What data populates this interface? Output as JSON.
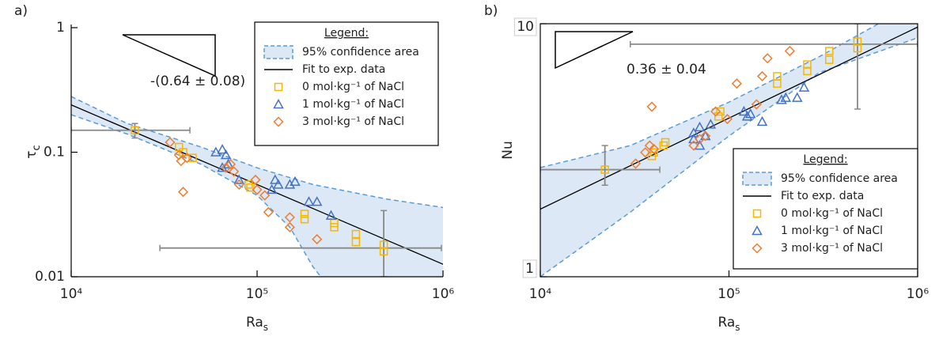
{
  "chart_data": [
    {
      "type": "scatter",
      "panel_label": "a)",
      "xlabel": "Ra",
      "xlabel_sub": "s",
      "ylabel": "τ",
      "ylabel_sub": "c",
      "log_x": true,
      "log_y": true,
      "xlim": [
        10000,
        1000000
      ],
      "ylim": [
        0.01,
        1
      ],
      "xticks": [
        {
          "value": 10000,
          "label": "10⁴"
        },
        {
          "value": 100000,
          "label": "10⁵"
        },
        {
          "value": 1000000,
          "label": "10⁶"
        }
      ],
      "yticks": [
        0.01,
        0.1,
        1
      ],
      "annotation": "-(0.64 ± 0.08)",
      "legend": {
        "title": "Legend:",
        "loc": "upper right"
      },
      "confidence": {
        "name": "95% confidence area",
        "color": "#5b9bd5",
        "upper_x": [
          10000,
          20000,
          50000,
          100000,
          200000,
          500000,
          1000000
        ],
        "upper": [
          0.28,
          0.17,
          0.11,
          0.075,
          0.055,
          0.042,
          0.036
        ],
        "lower_x": [
          10000,
          20000,
          50000,
          100000,
          150000,
          200000,
          220000
        ],
        "lower": [
          0.2,
          0.14,
          0.08,
          0.045,
          0.025,
          0.012,
          0.01
        ]
      },
      "fit": {
        "name": "Fit to exp. data",
        "color": "#000000",
        "x": [
          10000,
          1000000
        ],
        "values": [
          0.24,
          0.0126
        ]
      },
      "series": [
        {
          "name": "0 mol·kg⁻¹ of NaCl",
          "color": "#f5b800",
          "marker": "square",
          "x": [
            22000,
            38000,
            40000,
            45000,
            90000,
            92000,
            180000,
            180000,
            260000,
            260000,
            340000,
            340000,
            480000,
            480000
          ],
          "values": [
            0.15,
            0.11,
            0.1,
            0.09,
            0.055,
            0.052,
            0.032,
            0.029,
            0.027,
            0.025,
            0.022,
            0.019,
            0.018,
            0.016
          ]
        },
        {
          "name": "1 mol·kg⁻¹ of NaCl",
          "color": "#4472c4",
          "marker": "triangle",
          "x": [
            60000,
            65000,
            68000,
            65000,
            70000,
            80000,
            120000,
            125000,
            130000,
            150000,
            160000,
            190000,
            210000,
            250000
          ],
          "values": [
            0.1,
            0.105,
            0.095,
            0.075,
            0.08,
            0.06,
            0.05,
            0.06,
            0.055,
            0.055,
            0.058,
            0.04,
            0.04,
            0.031
          ]
        },
        {
          "name": "3 mol·kg⁻¹ of NaCl",
          "color": "#ed7d31",
          "marker": "diamond",
          "x": [
            34000,
            38000,
            39000,
            40000,
            42000,
            68000,
            72000,
            75000,
            80000,
            98000,
            100000,
            110000,
            115000,
            150000,
            150000,
            210000
          ],
          "values": [
            0.12,
            0.095,
            0.085,
            0.048,
            0.09,
            0.075,
            0.08,
            0.07,
            0.055,
            0.06,
            0.05,
            0.045,
            0.033,
            0.03,
            0.025,
            0.02
          ]
        }
      ],
      "error_bars": [
        {
          "x": 22000,
          "y": 0.15,
          "xerr": [
            10000,
            43500
          ],
          "yerr": [
            0.13,
            0.17
          ]
        },
        {
          "x": 480000,
          "y": 0.017,
          "xerr": [
            30000,
            980000
          ],
          "yerr": [
            0.01,
            0.034
          ]
        }
      ]
    },
    {
      "type": "scatter",
      "panel_label": "b)",
      "xlabel": "Ra",
      "xlabel_sub": "s",
      "ylabel": "Nu",
      "log_x": true,
      "log_y": true,
      "xlim": [
        10000,
        1000000
      ],
      "ylim": [
        1,
        10
      ],
      "xticks": [
        {
          "value": 10000,
          "label": "10⁴"
        },
        {
          "value": 100000,
          "label": "10⁵"
        },
        {
          "value": 1000000,
          "label": "10⁶"
        }
      ],
      "yticks": [
        1,
        10
      ],
      "annotation": "0.36 ± 0.04",
      "legend": {
        "title": "Legend:",
        "loc": "lower right"
      },
      "confidence": {
        "name": "95% confidence area",
        "color": "#5b9bd5",
        "upper_x": [
          10000,
          30000,
          100000,
          300000,
          620000
        ],
        "upper": [
          2.7,
          3.3,
          4.9,
          7.4,
          10
        ],
        "lower_x": [
          10000,
          30000,
          100000,
          300000,
          1000000
        ],
        "lower": [
          1,
          1.8,
          3.6,
          6.4,
          8.8
        ]
      },
      "fit": {
        "name": "Fit to exp. data",
        "color": "#000000",
        "x": [
          10000,
          1000000
        ],
        "values": [
          1.85,
          9.7
        ]
      },
      "series": [
        {
          "name": "0 mol·kg⁻¹ of NaCl",
          "color": "#f5b800",
          "marker": "square",
          "x": [
            22000,
            39000,
            40000,
            45000,
            46000,
            88000,
            90000,
            180000,
            180000,
            260000,
            260000,
            340000,
            340000,
            480000,
            480000
          ],
          "values": [
            2.65,
            3.0,
            3.1,
            3.3,
            3.4,
            4.3,
            4.5,
            5.8,
            6.2,
            6.5,
            6.9,
            7.2,
            7.8,
            8.0,
            8.5
          ]
        },
        {
          "name": "1 mol·kg⁻¹ of NaCl",
          "color": "#4472c4",
          "marker": "triangle",
          "x": [
            65000,
            65000,
            70000,
            70000,
            75000,
            80000,
            120000,
            125000,
            130000,
            150000,
            190000,
            200000,
            230000,
            250000
          ],
          "values": [
            3.5,
            3.7,
            3.3,
            3.9,
            3.6,
            4.0,
            4.5,
            4.3,
            4.4,
            4.1,
            5.0,
            5.1,
            5.1,
            5.6
          ]
        },
        {
          "name": "3 mol·kg⁻¹ of NaCl",
          "color": "#ed7d31",
          "marker": "diamond",
          "x": [
            32000,
            36000,
            38000,
            39000,
            40000,
            65000,
            70000,
            75000,
            85000,
            98000,
            110000,
            140000,
            150000,
            160000,
            210000
          ],
          "values": [
            2.8,
            3.1,
            3.3,
            4.7,
            3.2,
            3.3,
            3.5,
            3.6,
            4.5,
            4.2,
            5.8,
            4.8,
            6.2,
            7.3,
            7.8
          ]
        }
      ],
      "error_bars": [
        {
          "x": 22000,
          "y": 2.65,
          "xerr": [
            10000,
            43000
          ],
          "yerr": [
            2.3,
            3.3
          ]
        },
        {
          "x": 480000,
          "y": 8.3,
          "xerr": [
            30000,
            1000000
          ],
          "yerr": [
            4.6,
            10
          ]
        }
      ]
    }
  ]
}
